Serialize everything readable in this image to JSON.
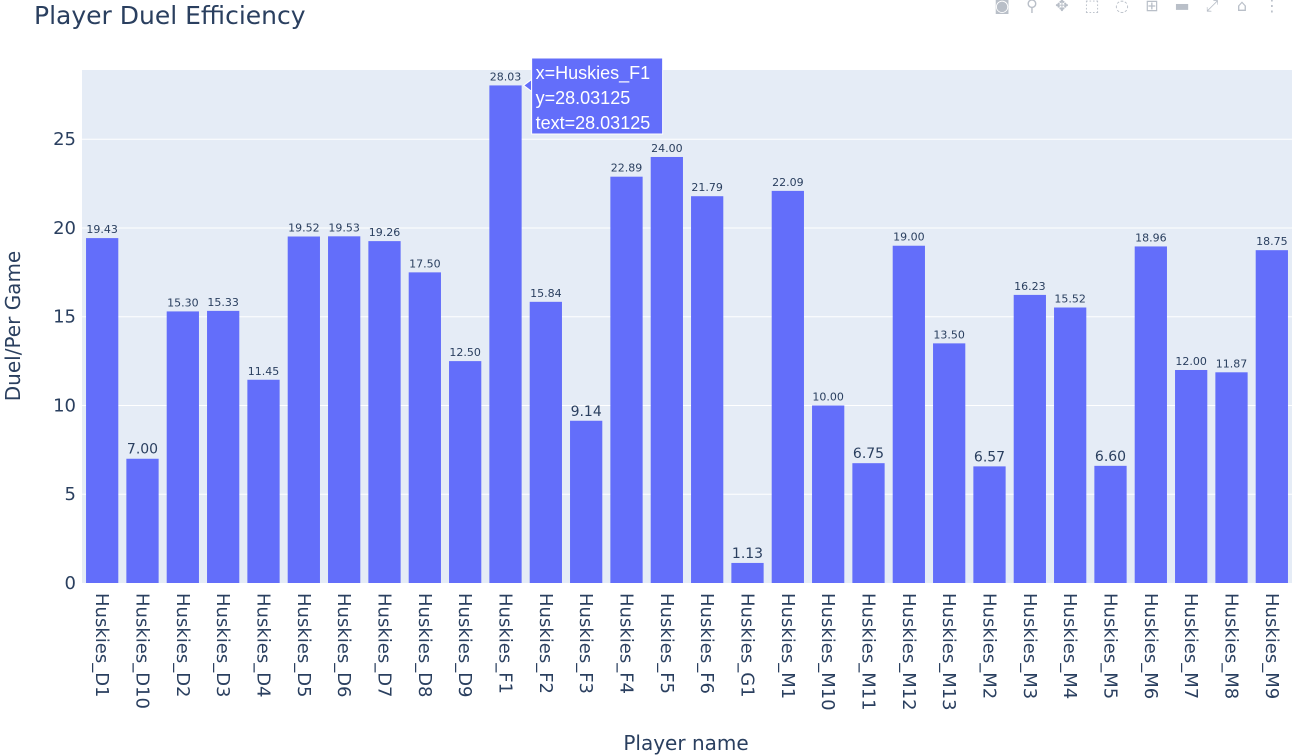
{
  "chart_data": {
    "type": "bar",
    "title": "Player Duel Efficiency",
    "xlabel": "Player name",
    "ylabel": "Duel/Per Game",
    "ylim": [
      0,
      28.9
    ],
    "yticks": [
      0,
      5,
      10,
      15,
      20,
      25
    ],
    "grid": true,
    "bar_color": "#636efa",
    "plot_bg": "#e5ecf6",
    "categories": [
      "Huskies_D1",
      "Huskies_D10",
      "Huskies_D2",
      "Huskies_D3",
      "Huskies_D4",
      "Huskies_D5",
      "Huskies_D6",
      "Huskies_D7",
      "Huskies_D8",
      "Huskies_D9",
      "Huskies_F1",
      "Huskies_F2",
      "Huskies_F3",
      "Huskies_F4",
      "Huskies_F5",
      "Huskies_F6",
      "Huskies_G1",
      "Huskies_M1",
      "Huskies_M10",
      "Huskies_M11",
      "Huskies_M12",
      "Huskies_M13",
      "Huskies_M2",
      "Huskies_M3",
      "Huskies_M4",
      "Huskies_M5",
      "Huskies_M6",
      "Huskies_M7",
      "Huskies_M8",
      "Huskies_M9"
    ],
    "values": [
      19.43,
      7.0,
      15.3,
      15.33,
      11.45,
      19.52,
      19.53,
      19.26,
      17.5,
      12.5,
      28.03125,
      15.84,
      9.14,
      22.89,
      24.0,
      21.79,
      1.13,
      22.09,
      10.0,
      6.75,
      19.0,
      13.5,
      6.57,
      16.23,
      15.52,
      6.6,
      18.96,
      12.0,
      11.87,
      18.75
    ],
    "labels": [
      "19.43",
      "7.00",
      "15.30",
      "15.33",
      "11.45",
      "19.52",
      "19.53",
      "19.26",
      "17.50",
      "12.50",
      "28.03",
      "15.84",
      "9.14",
      "22.89",
      "24.00",
      "21.79",
      "1.13",
      "22.09",
      "10.00",
      "6.75",
      "19.00",
      "13.50",
      "6.57",
      "16.23",
      "15.52",
      "6.60",
      "18.96",
      "12.00",
      "11.87",
      "18.75"
    ],
    "tooltip": {
      "index": 10,
      "lines": [
        "x=Huskies_F1",
        "y=28.03125",
        "text=28.03125"
      ]
    }
  },
  "modebar": {
    "icons": [
      "camera-icon",
      "zoom-icon",
      "pan-icon",
      "box-select-icon",
      "lasso-icon",
      "zoom-in-icon",
      "zoom-out-icon",
      "autoscale-icon",
      "home-icon",
      "plotly-logo-icon"
    ],
    "glyphs": [
      "◙",
      "⚲",
      "✥",
      "⬚",
      "◌",
      "⊞",
      "▬",
      "⤢",
      "⌂",
      "⋮"
    ]
  }
}
